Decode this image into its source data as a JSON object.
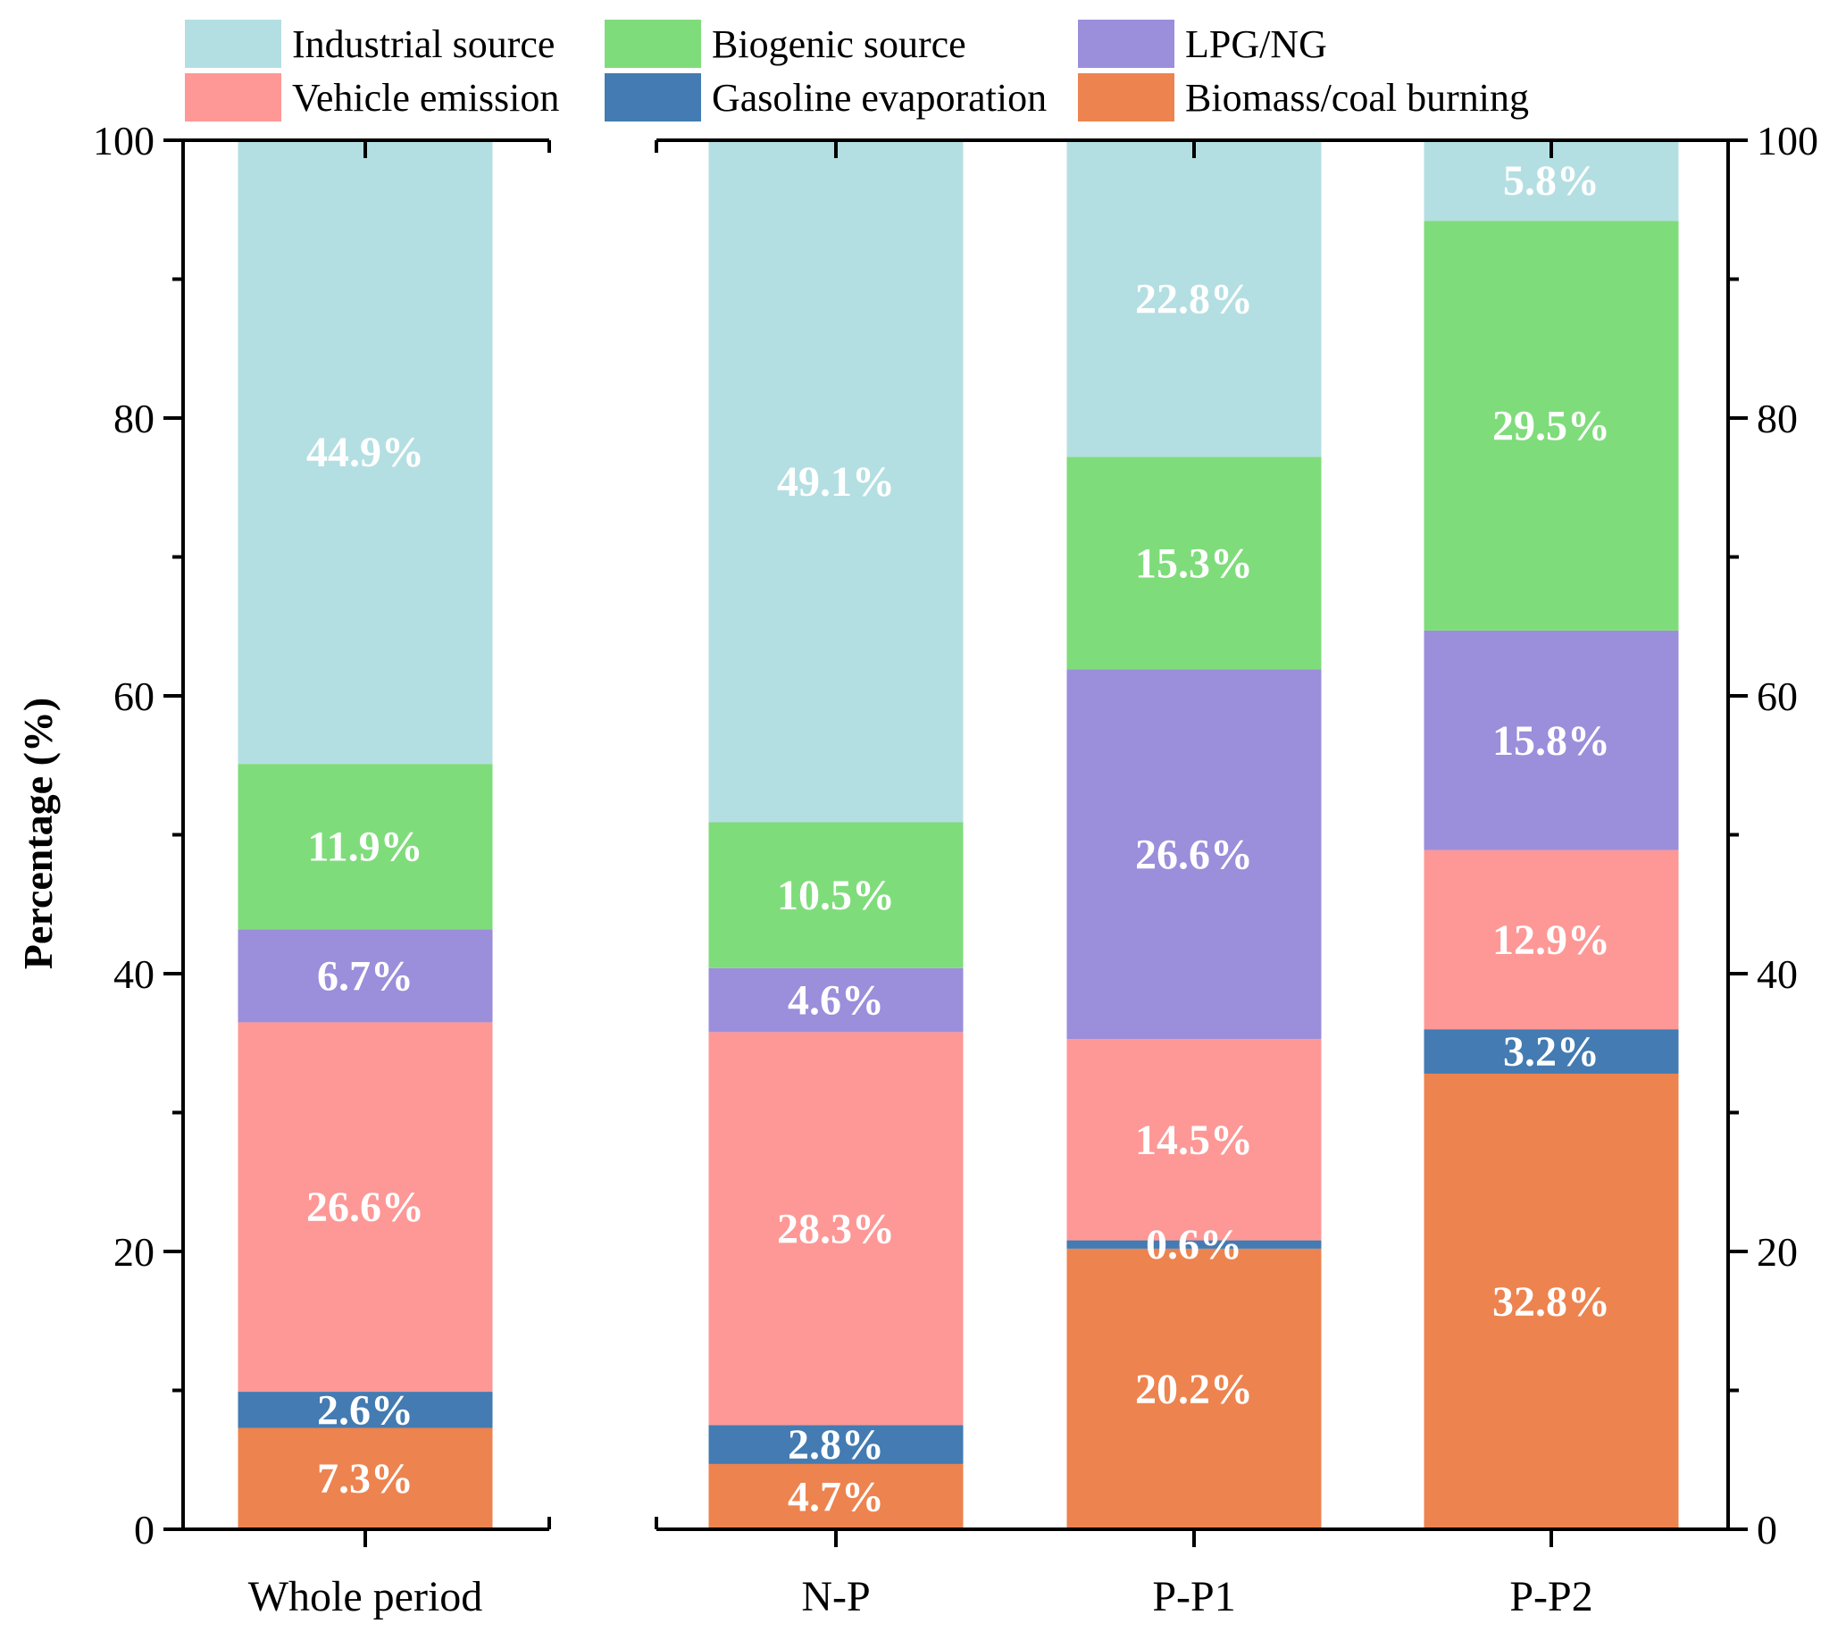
{
  "chart_data": {
    "type": "bar",
    "stacked": true,
    "ylabel": "Percentage (%)",
    "ylim": [
      0,
      100
    ],
    "yticks": [
      0,
      20,
      40,
      60,
      80,
      100
    ],
    "y_axis_right": true,
    "legend_placement": "top",
    "categories": [
      "Whole period",
      "N-P",
      "P-P1",
      "P-P2"
    ],
    "panels": [
      {
        "categories": [
          "Whole period"
        ]
      },
      {
        "categories": [
          "N-P",
          "P-P1",
          "P-P2"
        ]
      }
    ],
    "legend": [
      "Industrial source",
      "Biogenic source",
      "LPG/NG",
      "Vehicle emission",
      "Gasoline evaporation",
      "Biomass/coal burning"
    ],
    "series": [
      {
        "name": "Biomass/coal burning",
        "color": "#ed834f",
        "values": [
          7.3,
          4.7,
          20.2,
          32.8
        ],
        "labels": [
          "7.3%",
          "4.7%",
          "20.2%",
          "32.8%"
        ]
      },
      {
        "name": "Gasoline evaporation",
        "color": "#437bb2",
        "values": [
          2.6,
          2.8,
          0.6,
          3.2
        ],
        "labels": [
          "2.6%",
          "2.8%",
          "0.6%",
          "3.2%"
        ]
      },
      {
        "name": "Vehicle emission",
        "color": "#fd9896",
        "values": [
          26.6,
          28.3,
          14.5,
          12.9
        ],
        "labels": [
          "26.6%",
          "28.3%",
          "14.5%",
          "12.9%"
        ]
      },
      {
        "name": "LPG/NG",
        "color": "#9b8edb",
        "values": [
          6.7,
          4.6,
          26.6,
          15.8
        ],
        "labels": [
          "6.7%",
          "4.6%",
          "26.6%",
          "15.8%"
        ]
      },
      {
        "name": "Biogenic source",
        "color": "#7fdc7b",
        "values": [
          11.9,
          10.5,
          15.3,
          29.5
        ],
        "labels": [
          "11.9%",
          "10.5%",
          "15.3%",
          "29.5%"
        ]
      },
      {
        "name": "Industrial source",
        "color": "#b4dfe2",
        "values": [
          44.9,
          49.1,
          22.8,
          5.8
        ],
        "labels": [
          "44.9%",
          "49.1%",
          "22.8%",
          "5.8%"
        ]
      }
    ]
  }
}
